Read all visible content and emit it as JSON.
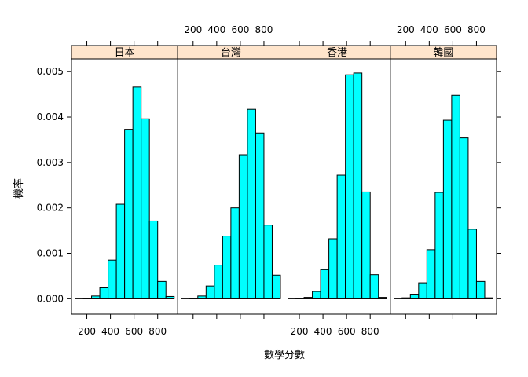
{
  "chart_data": {
    "type": "bar",
    "subtype": "histogram-lattice",
    "xlabel": "數學分數",
    "ylabel": "機率",
    "x_ticks": [
      200,
      400,
      600,
      800
    ],
    "y_ticks": [
      "0.000",
      "0.001",
      "0.002",
      "0.003",
      "0.004",
      "0.005"
    ],
    "y_tick_values": [
      0,
      0.001,
      0.002,
      0.003,
      0.004,
      0.005
    ],
    "xlim": [
      70,
      970
    ],
    "ylim": [
      -0.00034,
      0.00528
    ],
    "bin_edges": [
      100,
      170,
      240,
      310,
      380,
      450,
      520,
      590,
      660,
      730,
      800,
      870,
      940
    ],
    "colors": {
      "bar_fill": "#00FFFF",
      "strip_fill": "#FFE5CC",
      "axis": "#000000"
    },
    "panels": [
      {
        "name": "日本",
        "values": [
          0.0,
          1e-05,
          6e-05,
          0.00024,
          0.00085,
          0.00208,
          0.00373,
          0.00466,
          0.00396,
          0.00171,
          0.00038,
          5e-05
        ]
      },
      {
        "name": "台灣",
        "values": [
          0.0,
          1e-05,
          6e-05,
          0.00028,
          0.00074,
          0.00138,
          0.002,
          0.00317,
          0.00417,
          0.00365,
          0.00162,
          0.00052
        ]
      },
      {
        "name": "香港",
        "values": [
          0.0,
          1e-05,
          3e-05,
          0.00016,
          0.00064,
          0.00132,
          0.00272,
          0.00493,
          0.00497,
          0.00235,
          0.00053,
          3e-05
        ]
      },
      {
        "name": "韓國",
        "values": [
          0.0,
          2e-05,
          0.0001,
          0.00035,
          0.00108,
          0.00234,
          0.00393,
          0.00448,
          0.00354,
          0.00153,
          0.00038,
          2e-05
        ]
      }
    ]
  }
}
